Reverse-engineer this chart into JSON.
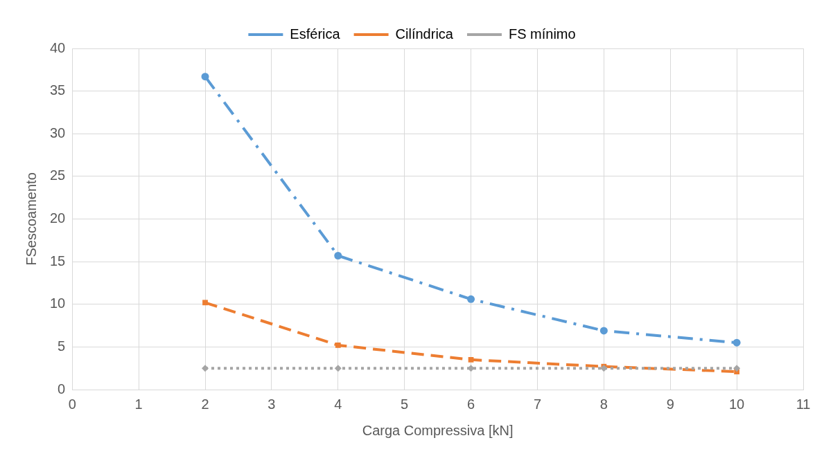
{
  "chart_data": {
    "type": "line",
    "xlabel": "Carga Compressiva [kN]",
    "ylabel": "FSescoamento",
    "x": [
      2,
      4,
      6,
      8,
      10
    ],
    "series": [
      {
        "name": "Esférica",
        "color": "#5b9bd5",
        "values": [
          36.7,
          15.7,
          10.6,
          6.9,
          5.5
        ],
        "line_style": "dashdot",
        "marker": "circle"
      },
      {
        "name": "Cilíndrica",
        "color": "#ed7d31",
        "values": [
          10.2,
          5.2,
          3.5,
          2.7,
          2.1
        ],
        "line_style": "dashed",
        "marker": "square"
      },
      {
        "name": "FS mínimo",
        "color": "#a5a5a5",
        "values": [
          2.5,
          2.5,
          2.5,
          2.5,
          2.5
        ],
        "line_style": "dotted",
        "marker": "diamond"
      }
    ],
    "xlim": [
      0,
      11
    ],
    "xticks": [
      0,
      1,
      2,
      3,
      4,
      5,
      6,
      7,
      8,
      9,
      10,
      11
    ],
    "ylim": [
      0,
      40
    ],
    "yticks": [
      0,
      5,
      10,
      15,
      20,
      25,
      30,
      35,
      40
    ],
    "grid": true,
    "legend": "top"
  }
}
